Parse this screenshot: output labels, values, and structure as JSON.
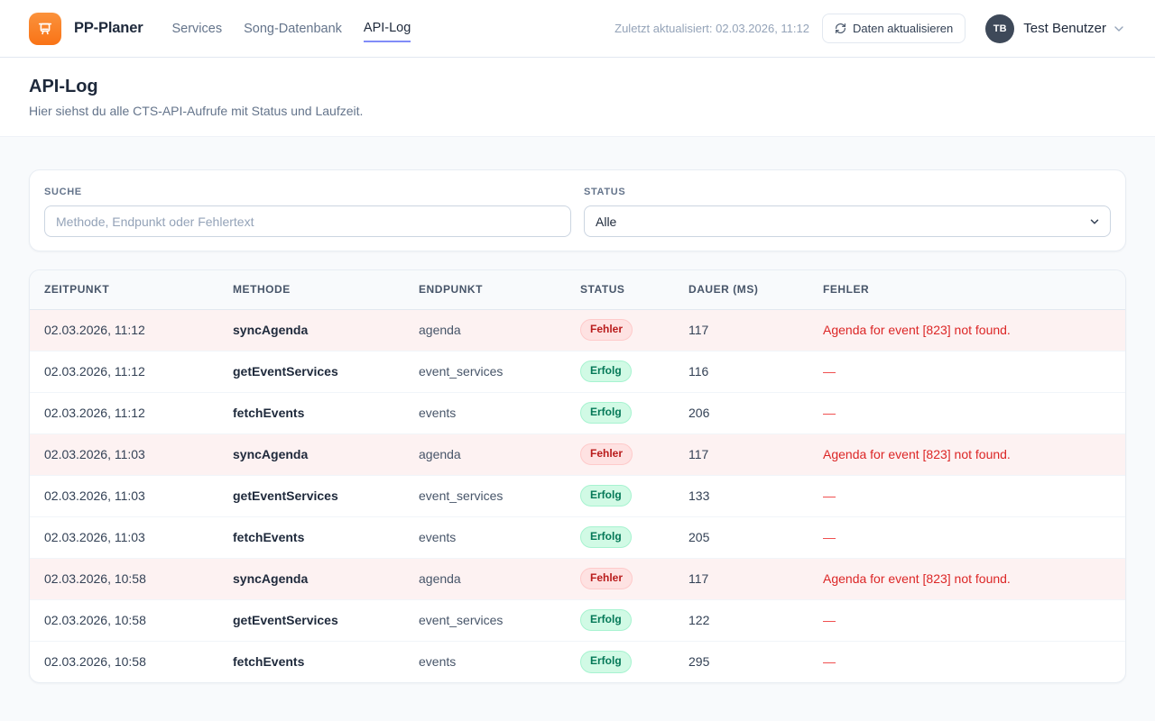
{
  "brand": {
    "name": "PP-Planer",
    "logo_icon": "presentation-icon",
    "logo_color": "#f97316"
  },
  "nav": {
    "items": [
      {
        "label": "Services",
        "active": false
      },
      {
        "label": "Song-Datenbank",
        "active": false
      },
      {
        "label": "API-Log",
        "active": true
      }
    ],
    "active_underline_color": "#818cf8"
  },
  "header": {
    "last_updated": "Zuletzt aktualisiert: 02.03.2026, 11:12",
    "refresh_button_label": "Daten aktualisieren",
    "refresh_icon": "refresh-icon",
    "user": {
      "initials": "TB",
      "name": "Test Benutzer",
      "chevron_icon": "chevron-down-icon"
    }
  },
  "page": {
    "title": "API-Log",
    "subtitle": "Hier siehst du alle CTS-API-Aufrufe mit Status und Laufzeit."
  },
  "filters": {
    "search": {
      "label": "SUCHE",
      "placeholder": "Methode, Endpunkt oder Fehlertext",
      "value": ""
    },
    "status": {
      "label": "STATUS",
      "selected": "Alle"
    }
  },
  "table": {
    "columns": [
      "ZEITPUNKT",
      "METHODE",
      "ENDPUNKT",
      "STATUS",
      "DAUER (MS)",
      "FEHLER"
    ],
    "error_status": "Fehler",
    "success_status": "Erfolg",
    "empty_error_marker": "—",
    "rows": [
      {
        "zeitpunkt": "02.03.2026, 11:12",
        "methode": "syncAgenda",
        "endpunkt": "agenda",
        "status": "Fehler",
        "dauer": "117",
        "fehler": "Agenda for event [823] not found."
      },
      {
        "zeitpunkt": "02.03.2026, 11:12",
        "methode": "getEventServices",
        "endpunkt": "event_services",
        "status": "Erfolg",
        "dauer": "116",
        "fehler": "—"
      },
      {
        "zeitpunkt": "02.03.2026, 11:12",
        "methode": "fetchEvents",
        "endpunkt": "events",
        "status": "Erfolg",
        "dauer": "206",
        "fehler": "—"
      },
      {
        "zeitpunkt": "02.03.2026, 11:03",
        "methode": "syncAgenda",
        "endpunkt": "agenda",
        "status": "Fehler",
        "dauer": "117",
        "fehler": "Agenda for event [823] not found."
      },
      {
        "zeitpunkt": "02.03.2026, 11:03",
        "methode": "getEventServices",
        "endpunkt": "event_services",
        "status": "Erfolg",
        "dauer": "133",
        "fehler": "—"
      },
      {
        "zeitpunkt": "02.03.2026, 11:03",
        "methode": "fetchEvents",
        "endpunkt": "events",
        "status": "Erfolg",
        "dauer": "205",
        "fehler": "—"
      },
      {
        "zeitpunkt": "02.03.2026, 10:58",
        "methode": "syncAgenda",
        "endpunkt": "agenda",
        "status": "Fehler",
        "dauer": "117",
        "fehler": "Agenda for event [823] not found."
      },
      {
        "zeitpunkt": "02.03.2026, 10:58",
        "methode": "getEventServices",
        "endpunkt": "event_services",
        "status": "Erfolg",
        "dauer": "122",
        "fehler": "—"
      },
      {
        "zeitpunkt": "02.03.2026, 10:58",
        "methode": "fetchEvents",
        "endpunkt": "events",
        "status": "Erfolg",
        "dauer": "295",
        "fehler": "—"
      }
    ]
  },
  "colors": {
    "error_badge_bg": "#fee2e2",
    "error_badge_text": "#b91c1c",
    "success_badge_bg": "#d1fae5",
    "success_badge_text": "#047857",
    "error_row_bg": "#fdf2f2",
    "error_text": "#dc2626",
    "page_bg": "#f8fafc"
  }
}
